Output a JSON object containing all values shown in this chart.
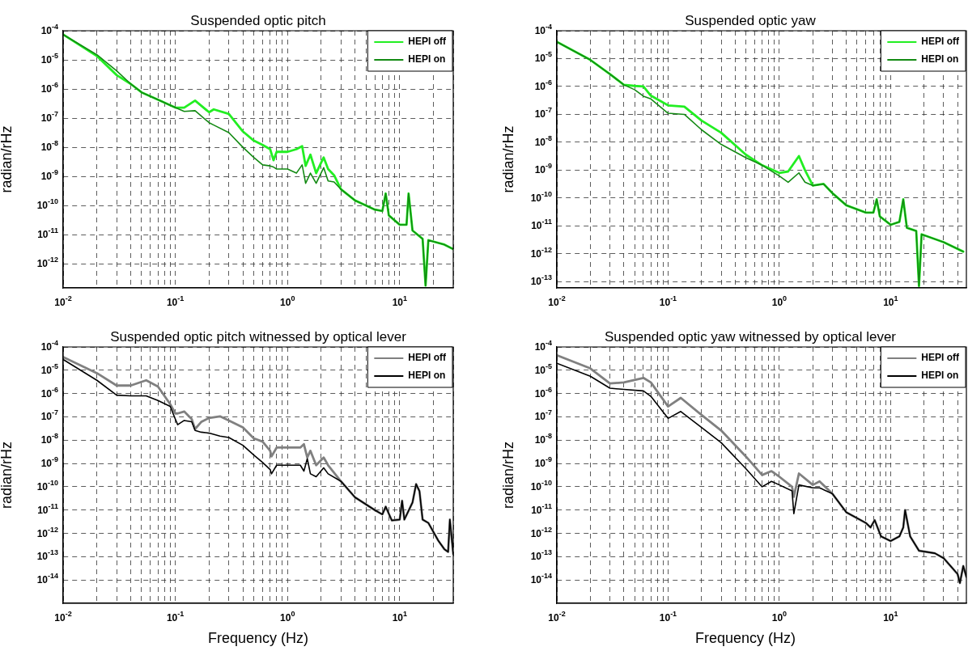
{
  "chart_data": [
    {
      "type": "line",
      "title": "Suspended optic pitch",
      "ylabel": "radian/rHz",
      "log": "xy",
      "grid": true,
      "legend": "top right",
      "marker": "none",
      "line_style": "solid",
      "x": [
        0.01,
        0.02,
        0.03,
        0.04,
        0.05,
        0.07,
        0.1,
        0.12,
        0.15,
        0.2,
        0.22,
        0.3,
        0.4,
        0.5,
        0.6,
        0.7,
        0.75,
        0.8,
        1.0,
        1.2,
        1.35,
        1.45,
        1.6,
        1.8,
        2.1,
        2.3,
        2.6,
        3.0,
        4,
        6,
        7,
        7.5,
        8,
        10,
        11.5,
        12,
        13,
        16,
        17,
        18,
        25,
        30
      ],
      "series": [
        {
          "name": "HEPI off",
          "color": "#22ee22",
          "values": [
            7.4e-05,
            1.35e-05,
            3e-06,
            1.5e-06,
            7.7e-07,
            4.3e-07,
            2.3e-07,
            2.3e-07,
            4e-07,
            1.6e-07,
            2e-07,
            1.4e-07,
            3.5e-08,
            1.7e-08,
            1.2e-08,
            8.6e-09,
            3.6e-09,
            7e-09,
            7e-09,
            8.6e-09,
            1.1e-08,
            2.3e-09,
            5.6e-09,
            1.3e-09,
            4.5e-09,
            1.8e-09,
            1.1e-09,
            3.6e-10,
            1.5e-10,
            7.3e-11,
            6.5e-11,
            2.6e-10,
            4.6e-11,
            2.2e-11,
            2.2e-11,
            2.6e-10,
            1.4e-11,
            7.2e-12,
            1.8e-13,
            6.5e-12,
            4.6e-12,
            3.2e-12
          ]
        },
        {
          "name": "HEPI on",
          "color": "#138a13",
          "values": [
            7.4e-05,
            1.5e-05,
            4.2e-06,
            1.5e-06,
            7.7e-07,
            4.3e-07,
            2.3e-07,
            1.7e-07,
            1.8e-07,
            7e-08,
            5.8e-08,
            3.2e-08,
            1e-08,
            4.5e-09,
            2.5e-09,
            2.3e-09,
            2.1e-09,
            1.8e-09,
            1.8e-09,
            1.3e-09,
            2.5e-09,
            5.8e-10,
            1.3e-09,
            5.8e-10,
            2e-09,
            7e-10,
            6.5e-10,
            3.6e-10,
            1.5e-10,
            7.3e-11,
            6.5e-11,
            2.6e-10,
            4.6e-11,
            2.2e-11,
            2.2e-11,
            2.6e-10,
            1.4e-11,
            7.2e-12,
            1.8e-13,
            6.5e-12,
            4.6e-12,
            3.2e-12
          ]
        }
      ],
      "xlim": [
        0.01,
        30
      ],
      "xticks": [
        {
          "value": 0.01,
          "label": "10$^{-2}$"
        },
        {
          "value": 0.02,
          "label": null
        },
        {
          "value": 0.03,
          "label": null
        },
        {
          "value": 0.04,
          "label": null
        },
        {
          "value": 0.05,
          "label": null
        },
        {
          "value": 0.06,
          "label": null
        },
        {
          "value": 0.07,
          "label": null
        },
        {
          "value": 0.08,
          "label": null
        },
        {
          "value": 0.09,
          "label": null
        },
        {
          "value": 0.1,
          "label": "10$^{-1}$"
        },
        {
          "value": 0.2,
          "label": null
        },
        {
          "value": 0.3,
          "label": null
        },
        {
          "value": 0.4,
          "label": null
        },
        {
          "value": 0.5,
          "label": null
        },
        {
          "value": 0.6,
          "label": null
        },
        {
          "value": 0.7,
          "label": null
        },
        {
          "value": 0.8,
          "label": null
        },
        {
          "value": 0.9,
          "label": null
        },
        {
          "value": 1,
          "label": "10$^{0}$"
        },
        {
          "value": 2,
          "label": null
        },
        {
          "value": 3,
          "label": null
        },
        {
          "value": 4,
          "label": null
        },
        {
          "value": 5,
          "label": null
        },
        {
          "value": 6,
          "label": null
        },
        {
          "value": 7,
          "label": null
        },
        {
          "value": 8,
          "label": null
        },
        {
          "value": 9,
          "label": null
        },
        {
          "value": 10,
          "label": "10$^{1}$"
        },
        {
          "value": 20,
          "label": null
        },
        {
          "value": 30,
          "label": null
        }
      ],
      "ylim": [
        1.5e-13,
        0.0001
      ],
      "yticks": [
        {
          "value": 1e-12,
          "label": "10$^{-12}$"
        },
        {
          "value": 1e-11,
          "label": "10$^{-11}$"
        },
        {
          "value": 1e-10,
          "label": "10$^{-10}$"
        },
        {
          "value": 1e-09,
          "label": "10$^{-9}$"
        },
        {
          "value": 1e-08,
          "label": "10$^{-8}$"
        },
        {
          "value": 1e-07,
          "label": "10$^{-7}$"
        },
        {
          "value": 1e-06,
          "label": "10$^{-6}$"
        },
        {
          "value": 1e-05,
          "label": "10$^{-5}$"
        },
        {
          "value": 0.0001,
          "label": "10$^{-4}$"
        }
      ]
    },
    {
      "type": "line",
      "title": "Suspended optic yaw",
      "ylabel": "radian/rHz",
      "log": "xy",
      "grid": true,
      "legend": "top right",
      "marker": "none",
      "line_style": "solid",
      "x": [
        0.01,
        0.02,
        0.03,
        0.04,
        0.05,
        0.06,
        0.07,
        0.1,
        0.14,
        0.2,
        0.3,
        0.5,
        0.7,
        1.0,
        1.2,
        1.5,
        1.7,
        2,
        2.5,
        3,
        4,
        6,
        7,
        7.5,
        8,
        10,
        12,
        13,
        14,
        17,
        18,
        19,
        30,
        45
      ],
      "series": [
        {
          "name": "HEPI off",
          "color": "#22ee22",
          "values": [
            4e-05,
            9e-06,
            2.8e-06,
            1.15e-06,
            1.05e-06,
            1e-06,
            4.7e-07,
            2.1e-07,
            1.9e-07,
            6e-08,
            2.2e-08,
            3.6e-09,
            1.5e-09,
            8e-10,
            9e-10,
            3.2e-09,
            1e-09,
            2.8e-10,
            3.2e-10,
            1.5e-10,
            5.5e-11,
            3e-11,
            3e-11,
            9e-11,
            2.2e-11,
            1.1e-11,
            1.4e-11,
            9e-11,
            8.6e-12,
            6.6e-12,
            7e-14,
            5e-12,
            2.6e-12,
            1.2e-12
          ]
        },
        {
          "name": "HEPI on",
          "color": "#138a13",
          "values": [
            4e-05,
            9e-06,
            2.8e-06,
            1.15e-06,
            7.7e-07,
            4.5e-07,
            3.6e-07,
            1.1e-07,
            1e-07,
            2.8e-08,
            8.4e-09,
            2.8e-09,
            1.5e-09,
            6.2e-10,
            3.7e-10,
            8e-10,
            3.7e-10,
            2.8e-10,
            3.2e-10,
            1.5e-10,
            5.5e-11,
            3e-11,
            3e-11,
            9e-11,
            2.2e-11,
            1.1e-11,
            1.4e-11,
            9e-11,
            8.6e-12,
            6.6e-12,
            7e-14,
            5e-12,
            2.6e-12,
            1.2e-12
          ]
        }
      ],
      "xlim": [
        0.01,
        48
      ],
      "xticks": [
        {
          "value": 0.01,
          "label": "10$^{-2}$"
        },
        {
          "value": 0.02,
          "label": null
        },
        {
          "value": 0.03,
          "label": null
        },
        {
          "value": 0.04,
          "label": null
        },
        {
          "value": 0.05,
          "label": null
        },
        {
          "value": 0.06,
          "label": null
        },
        {
          "value": 0.07,
          "label": null
        },
        {
          "value": 0.08,
          "label": null
        },
        {
          "value": 0.09,
          "label": null
        },
        {
          "value": 0.1,
          "label": "10$^{-1}$"
        },
        {
          "value": 0.2,
          "label": null
        },
        {
          "value": 0.3,
          "label": null
        },
        {
          "value": 0.4,
          "label": null
        },
        {
          "value": 0.5,
          "label": null
        },
        {
          "value": 0.6,
          "label": null
        },
        {
          "value": 0.7,
          "label": null
        },
        {
          "value": 0.8,
          "label": null
        },
        {
          "value": 0.9,
          "label": null
        },
        {
          "value": 1,
          "label": "10$^{0}$"
        },
        {
          "value": 2,
          "label": null
        },
        {
          "value": 3,
          "label": null
        },
        {
          "value": 4,
          "label": null
        },
        {
          "value": 5,
          "label": null
        },
        {
          "value": 6,
          "label": null
        },
        {
          "value": 7,
          "label": null
        },
        {
          "value": 8,
          "label": null
        },
        {
          "value": 9,
          "label": null
        },
        {
          "value": 10,
          "label": "10$^{1}$"
        },
        {
          "value": 20,
          "label": null
        },
        {
          "value": 30,
          "label": null
        },
        {
          "value": 40,
          "label": null
        }
      ],
      "ylim": [
        6e-14,
        0.0001
      ],
      "yticks": [
        {
          "value": 1e-13,
          "label": "10$^{-13}$"
        },
        {
          "value": 1e-12,
          "label": "10$^{-12}$"
        },
        {
          "value": 1e-11,
          "label": "10$^{-11}$"
        },
        {
          "value": 1e-10,
          "label": "10$^{-10}$"
        },
        {
          "value": 1e-09,
          "label": "10$^{-9}$"
        },
        {
          "value": 1e-08,
          "label": "10$^{-8}$"
        },
        {
          "value": 1e-07,
          "label": "10$^{-7}$"
        },
        {
          "value": 1e-06,
          "label": "10$^{-6}$"
        },
        {
          "value": 1e-05,
          "label": "10$^{-5}$"
        },
        {
          "value": 0.0001,
          "label": "10$^{-4}$"
        }
      ]
    },
    {
      "type": "line",
      "title": "Suspended optic pitch witnessed by optical lever",
      "xlabel": "Frequency (Hz)",
      "ylabel": "radian/rHz",
      "log": "xy",
      "grid": true,
      "legend": "top right",
      "marker": "none",
      "line_style": "solid",
      "x": [
        0.01,
        0.02,
        0.03,
        0.04,
        0.055,
        0.07,
        0.09,
        0.1,
        0.105,
        0.12,
        0.14,
        0.15,
        0.17,
        0.2,
        0.25,
        0.3,
        0.4,
        0.5,
        0.6,
        0.7,
        0.72,
        0.8,
        1.0,
        1.3,
        1.4,
        1.5,
        1.6,
        1.8,
        2.1,
        2.3,
        3,
        4,
        6,
        7,
        7.5,
        8.5,
        10,
        10.5,
        11,
        13,
        14,
        15,
        16,
        18,
        22,
        25,
        27,
        28,
        30
      ],
      "series": [
        {
          "name": "HEPI off",
          "color": "#808080",
          "values": [
            3.7e-05,
            7.5e-06,
            2.2e-06,
            2.2e-06,
            3.7e-06,
            2e-06,
            3.5e-07,
            1.4e-07,
            1.4e-07,
            1.7e-07,
            8e-08,
            3e-08,
            6e-08,
            9e-08,
            1.05e-07,
            7e-08,
            3.5e-08,
            1.2e-08,
            8.6e-09,
            3.5e-09,
            2e-09,
            4.8e-09,
            4.8e-09,
            4.8e-09,
            6.7e-09,
            1.8e-09,
            3.5e-09,
            8.4e-10,
            1.8e-09,
            8.4e-10,
            1.7e-10,
            3.5e-11,
            1e-11,
            6.5e-12,
            1.4e-11,
            3.6e-12,
            3.9e-12,
            2.5e-11,
            3.9e-12,
            2.1e-11,
            1.3e-10,
            6.5e-11,
            3.9e-12,
            2.8e-12,
            5e-13,
            2.1e-13,
            1.6e-13,
            3.9e-12,
            1.3e-13
          ]
        },
        {
          "name": "HEPI on",
          "color": "#000000",
          "values": [
            2.9e-05,
            3.7e-06,
            8.5e-07,
            8e-07,
            8e-07,
            5e-07,
            2.8e-07,
            8e-08,
            4.6e-08,
            7e-08,
            6.2e-08,
            2.6e-08,
            2.2e-08,
            2e-08,
            1.5e-08,
            1.3e-08,
            6e-09,
            2.3e-09,
            1.1e-09,
            5.5e-10,
            3.6e-10,
            8.4e-10,
            8.4e-10,
            8.4e-10,
            4.7e-10,
            1.6e-09,
            3.6e-10,
            2.7e-10,
            6.5e-10,
            3.6e-10,
            1.7e-10,
            3.5e-11,
            1e-11,
            6.5e-12,
            1.4e-11,
            3.6e-12,
            3.9e-12,
            2.5e-11,
            3.9e-12,
            2.1e-11,
            1.3e-10,
            6.5e-11,
            3.9e-12,
            2.8e-12,
            5e-13,
            2.1e-13,
            1.6e-13,
            3.9e-12,
            1.3e-13
          ]
        }
      ],
      "xlim": [
        0.01,
        30
      ],
      "xticks": [
        {
          "value": 0.01,
          "label": "10$^{-2}$"
        },
        {
          "value": 0.02,
          "label": null
        },
        {
          "value": 0.03,
          "label": null
        },
        {
          "value": 0.04,
          "label": null
        },
        {
          "value": 0.05,
          "label": null
        },
        {
          "value": 0.06,
          "label": null
        },
        {
          "value": 0.07,
          "label": null
        },
        {
          "value": 0.08,
          "label": null
        },
        {
          "value": 0.09,
          "label": null
        },
        {
          "value": 0.1,
          "label": "10$^{-1}$"
        },
        {
          "value": 0.2,
          "label": null
        },
        {
          "value": 0.3,
          "label": null
        },
        {
          "value": 0.4,
          "label": null
        },
        {
          "value": 0.5,
          "label": null
        },
        {
          "value": 0.6,
          "label": null
        },
        {
          "value": 0.7,
          "label": null
        },
        {
          "value": 0.8,
          "label": null
        },
        {
          "value": 0.9,
          "label": null
        },
        {
          "value": 1,
          "label": "10$^{0}$"
        },
        {
          "value": 2,
          "label": null
        },
        {
          "value": 3,
          "label": null
        },
        {
          "value": 4,
          "label": null
        },
        {
          "value": 5,
          "label": null
        },
        {
          "value": 6,
          "label": null
        },
        {
          "value": 7,
          "label": null
        },
        {
          "value": 8,
          "label": null
        },
        {
          "value": 9,
          "label": null
        },
        {
          "value": 10,
          "label": "10$^{1}$"
        },
        {
          "value": 20,
          "label": null
        },
        {
          "value": 30,
          "label": null
        }
      ],
      "ylim": [
        1e-15,
        0.0001
      ],
      "yticks": [
        {
          "value": 1e-14,
          "label": "10$^{-14}$"
        },
        {
          "value": 1e-13,
          "label": "10$^{-13}$"
        },
        {
          "value": 1e-12,
          "label": "10$^{-12}$"
        },
        {
          "value": 1e-11,
          "label": "10$^{-11}$"
        },
        {
          "value": 1e-10,
          "label": "10$^{-10}$"
        },
        {
          "value": 1e-09,
          "label": "10$^{-9}$"
        },
        {
          "value": 1e-08,
          "label": "10$^{-8}$"
        },
        {
          "value": 1e-07,
          "label": "10$^{-7}$"
        },
        {
          "value": 1e-06,
          "label": "10$^{-6}$"
        },
        {
          "value": 1e-05,
          "label": "10$^{-5}$"
        },
        {
          "value": 0.0001,
          "label": "10$^{-4}$"
        }
      ]
    },
    {
      "type": "line",
      "title": "Suspended optic yaw witnessed by optical lever",
      "xlabel": "Frequency (Hz)",
      "ylabel": "radian/rHz",
      "log": "xy",
      "grid": true,
      "legend": "top right",
      "marker": "none",
      "line_style": "solid",
      "x": [
        0.01,
        0.02,
        0.03,
        0.04,
        0.06,
        0.07,
        0.1,
        0.13,
        0.2,
        0.3,
        0.5,
        0.7,
        0.85,
        1,
        1.3,
        1.35,
        1.5,
        2,
        2.3,
        3,
        4,
        6,
        6.6,
        7.2,
        8.2,
        10,
        12,
        13,
        13.5,
        15,
        18,
        25,
        30,
        40,
        42,
        45,
        48
      ],
      "series": [
        {
          "name": "HEPI off",
          "color": "#808080",
          "values": [
            4.4e-05,
            1.2e-05,
            2.7e-06,
            3e-06,
            4.7e-06,
            3e-06,
            2.8e-07,
            6.5e-07,
            1.2e-07,
            2.6e-08,
            2e-09,
            3.2e-10,
            4.7e-10,
            2.7e-10,
            1e-10,
            3.7e-11,
            3.7e-10,
            1.2e-10,
            1.7e-10,
            5e-11,
            8e-12,
            2.8e-12,
            1.8e-12,
            3.7e-12,
            7.4e-13,
            4.7e-13,
            7.4e-13,
            1.8e-12,
            1e-11,
            7.4e-13,
            1.8e-13,
            1.4e-13,
            8.6e-14,
            1.8e-14,
            7.4e-15,
            4e-14,
            1.35e-14
          ]
        },
        {
          "name": "HEPI on",
          "color": "#000000",
          "values": [
            2e-05,
            5.5e-06,
            1.7e-06,
            1.5e-06,
            1.3e-06,
            7.6e-07,
            8.6e-08,
            1.7e-07,
            3.5e-08,
            7.8e-09,
            6e-10,
            1e-10,
            1.7e-10,
            1.2e-10,
            6.7e-11,
            7e-12,
            1.2e-10,
            9e-11,
            9e-11,
            5e-11,
            8e-12,
            2.8e-12,
            1.8e-12,
            3.7e-12,
            7.4e-13,
            4.7e-13,
            7.4e-13,
            1.8e-12,
            1e-11,
            7.4e-13,
            1.8e-13,
            1.4e-13,
            8.6e-14,
            1.8e-14,
            7.4e-15,
            4e-14,
            1.35e-14
          ]
        }
      ],
      "xlim": [
        0.01,
        48
      ],
      "xticks": [
        {
          "value": 0.01,
          "label": "10$^{-2}$"
        },
        {
          "value": 0.02,
          "label": null
        },
        {
          "value": 0.03,
          "label": null
        },
        {
          "value": 0.04,
          "label": null
        },
        {
          "value": 0.05,
          "label": null
        },
        {
          "value": 0.06,
          "label": null
        },
        {
          "value": 0.07,
          "label": null
        },
        {
          "value": 0.08,
          "label": null
        },
        {
          "value": 0.09,
          "label": null
        },
        {
          "value": 0.1,
          "label": "10$^{-1}$"
        },
        {
          "value": 0.2,
          "label": null
        },
        {
          "value": 0.3,
          "label": null
        },
        {
          "value": 0.4,
          "label": null
        },
        {
          "value": 0.5,
          "label": null
        },
        {
          "value": 0.6,
          "label": null
        },
        {
          "value": 0.7,
          "label": null
        },
        {
          "value": 0.8,
          "label": null
        },
        {
          "value": 0.9,
          "label": null
        },
        {
          "value": 1,
          "label": "10$^{0}$"
        },
        {
          "value": 2,
          "label": null
        },
        {
          "value": 3,
          "label": null
        },
        {
          "value": 4,
          "label": null
        },
        {
          "value": 5,
          "label": null
        },
        {
          "value": 6,
          "label": null
        },
        {
          "value": 7,
          "label": null
        },
        {
          "value": 8,
          "label": null
        },
        {
          "value": 9,
          "label": null
        },
        {
          "value": 10,
          "label": "10$^{1}$"
        },
        {
          "value": 20,
          "label": null
        },
        {
          "value": 30,
          "label": null
        },
        {
          "value": 40,
          "label": null
        }
      ],
      "ylim": [
        1e-15,
        0.0001
      ],
      "yticks": [
        {
          "value": 1e-14,
          "label": "10$^{-14}$"
        },
        {
          "value": 1e-13,
          "label": "10$^{-13}$"
        },
        {
          "value": 1e-12,
          "label": "10$^{-12}$"
        },
        {
          "value": 1e-11,
          "label": "10$^{-11}$"
        },
        {
          "value": 1e-10,
          "label": "10$^{-10}$"
        },
        {
          "value": 1e-09,
          "label": "10$^{-9}$"
        },
        {
          "value": 1e-08,
          "label": "10$^{-8}$"
        },
        {
          "value": 1e-07,
          "label": "10$^{-7}$"
        },
        {
          "value": 1e-06,
          "label": "10$^{-6}$"
        },
        {
          "value": 1e-05,
          "label": "10$^{-5}$"
        },
        {
          "value": 0.0001,
          "label": "10$^{-4}$"
        }
      ]
    }
  ]
}
